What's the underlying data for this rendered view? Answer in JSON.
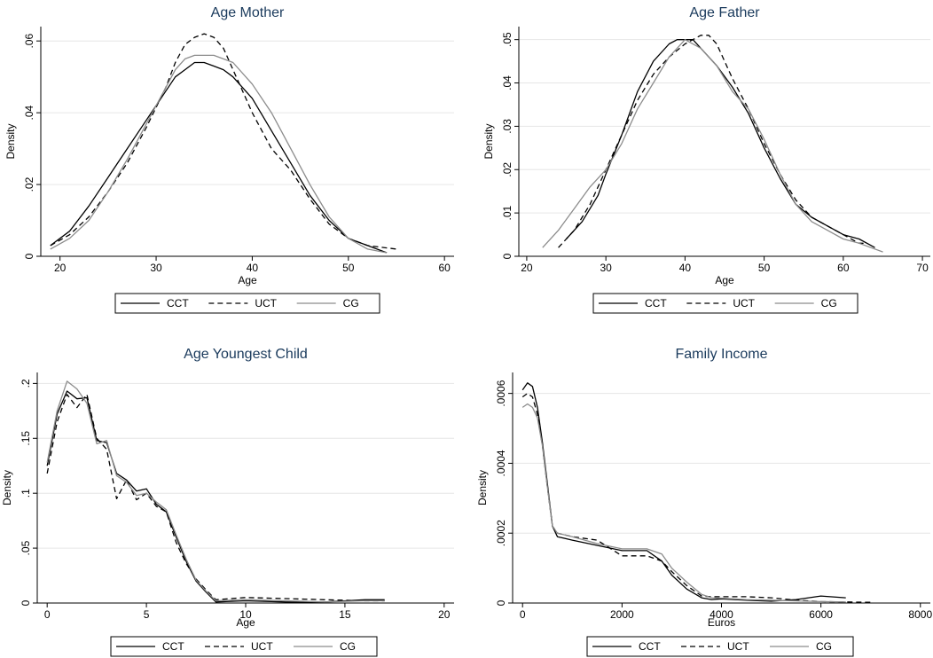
{
  "chart_data": [
    {
      "type": "line",
      "title": "Age Mother",
      "xlabel": "Age",
      "ylabel": "Density",
      "xlim": [
        18,
        61
      ],
      "ylim": [
        0,
        0.064
      ],
      "xticks": [
        20,
        30,
        40,
        50,
        60
      ],
      "yticks": [
        0,
        0.02,
        0.04,
        0.06
      ],
      "xtick_labels": [
        "20",
        "30",
        "40",
        "50",
        "60"
      ],
      "ytick_labels": [
        "0",
        ".02",
        ".04",
        ".06"
      ],
      "grid": true,
      "legend_position": "bottom",
      "series": [
        {
          "name": "CCT",
          "style": "solid",
          "color": "#000000",
          "x": [
            19,
            21,
            23,
            25,
            27,
            29,
            31,
            32,
            33,
            34,
            35,
            36,
            37,
            38,
            40,
            42,
            44,
            46,
            48,
            50,
            52,
            54
          ],
          "y": [
            0.003,
            0.007,
            0.014,
            0.022,
            0.03,
            0.038,
            0.046,
            0.05,
            0.052,
            0.054,
            0.054,
            0.053,
            0.052,
            0.05,
            0.044,
            0.035,
            0.026,
            0.017,
            0.01,
            0.005,
            0.003,
            0.001
          ]
        },
        {
          "name": "UCT",
          "style": "dashed",
          "color": "#000000",
          "x": [
            19,
            21,
            23,
            25,
            27,
            29,
            31,
            32,
            33,
            34,
            35,
            36,
            37,
            38,
            39,
            40,
            42,
            44,
            46,
            48,
            50,
            52,
            55
          ],
          "y": [
            0.003,
            0.006,
            0.011,
            0.018,
            0.026,
            0.036,
            0.047,
            0.054,
            0.059,
            0.061,
            0.062,
            0.061,
            0.058,
            0.052,
            0.046,
            0.04,
            0.03,
            0.024,
            0.016,
            0.009,
            0.005,
            0.003,
            0.002
          ]
        },
        {
          "name": "CG",
          "style": "solid",
          "color": "#8c8c8c",
          "x": [
            19,
            21,
            23,
            25,
            27,
            29,
            31,
            32,
            33,
            34,
            35,
            36,
            37,
            38,
            40,
            42,
            44,
            46,
            48,
            50,
            52,
            54
          ],
          "y": [
            0.002,
            0.005,
            0.01,
            0.018,
            0.027,
            0.037,
            0.047,
            0.052,
            0.055,
            0.056,
            0.056,
            0.056,
            0.055,
            0.054,
            0.048,
            0.04,
            0.03,
            0.02,
            0.011,
            0.005,
            0.002,
            0.001
          ]
        }
      ]
    },
    {
      "type": "line",
      "title": "Age Father",
      "xlabel": "Age",
      "ylabel": "Density",
      "xlim": [
        19,
        71
      ],
      "ylim": [
        0,
        0.053
      ],
      "xticks": [
        20,
        30,
        40,
        50,
        60,
        70
      ],
      "yticks": [
        0,
        0.01,
        0.02,
        0.03,
        0.04,
        0.05
      ],
      "xtick_labels": [
        "20",
        "30",
        "40",
        "50",
        "60",
        "70"
      ],
      "ytick_labels": [
        "0",
        ".01",
        ".02",
        ".03",
        ".04",
        ".05"
      ],
      "grid": true,
      "legend_position": "bottom",
      "series": [
        {
          "name": "CCT",
          "style": "solid",
          "color": "#000000",
          "x": [
            25,
            27,
            29,
            30,
            32,
            34,
            36,
            38,
            39,
            40,
            41,
            42,
            44,
            46,
            48,
            50,
            52,
            54,
            56,
            58,
            60,
            62,
            64
          ],
          "y": [
            0.004,
            0.008,
            0.014,
            0.019,
            0.028,
            0.038,
            0.045,
            0.049,
            0.05,
            0.05,
            0.05,
            0.048,
            0.044,
            0.039,
            0.033,
            0.025,
            0.018,
            0.012,
            0.009,
            0.007,
            0.005,
            0.004,
            0.002
          ]
        },
        {
          "name": "UCT",
          "style": "dashed",
          "color": "#000000",
          "x": [
            24,
            26,
            28,
            30,
            32,
            34,
            36,
            38,
            40,
            41,
            42,
            43,
            44,
            46,
            48,
            50,
            52,
            54,
            56,
            58,
            60,
            62,
            63
          ],
          "y": [
            0.002,
            0.006,
            0.012,
            0.02,
            0.028,
            0.036,
            0.042,
            0.046,
            0.049,
            0.05,
            0.051,
            0.051,
            0.049,
            0.041,
            0.034,
            0.026,
            0.019,
            0.013,
            0.009,
            0.007,
            0.005,
            0.003,
            0.003
          ]
        },
        {
          "name": "CG",
          "style": "solid",
          "color": "#8c8c8c",
          "x": [
            22,
            24,
            26,
            28,
            30,
            32,
            34,
            36,
            38,
            40,
            42,
            44,
            46,
            48,
            50,
            52,
            54,
            56,
            58,
            60,
            62,
            65
          ],
          "y": [
            0.002,
            0.006,
            0.011,
            0.016,
            0.02,
            0.026,
            0.034,
            0.04,
            0.046,
            0.05,
            0.048,
            0.044,
            0.038,
            0.034,
            0.027,
            0.019,
            0.012,
            0.008,
            0.006,
            0.004,
            0.003,
            0.001
          ]
        }
      ]
    },
    {
      "type": "line",
      "title": "Age Youngest Child",
      "xlabel": "Age",
      "ylabel": "Density",
      "xlim": [
        -0.5,
        20.5
      ],
      "ylim": [
        0,
        0.21
      ],
      "xticks": [
        0,
        5,
        10,
        15,
        20
      ],
      "yticks": [
        0,
        0.05,
        0.1,
        0.15,
        0.2
      ],
      "xtick_labels": [
        "0",
        "5",
        "10",
        "15",
        "20"
      ],
      "ytick_labels": [
        "0",
        ".05",
        ".1",
        ".15",
        ".2"
      ],
      "grid": true,
      "legend_position": "bottom",
      "series": [
        {
          "name": "CCT",
          "style": "solid",
          "color": "#000000",
          "x": [
            0,
            0.5,
            1.0,
            1.5,
            2.0,
            2.5,
            3.0,
            3.5,
            4.0,
            4.5,
            5.0,
            5.5,
            6.0,
            6.5,
            7.0,
            7.5,
            8.0,
            8.5,
            10,
            12,
            14,
            16,
            17
          ],
          "y": [
            0.125,
            0.172,
            0.193,
            0.186,
            0.187,
            0.148,
            0.146,
            0.118,
            0.112,
            0.102,
            0.104,
            0.09,
            0.083,
            0.06,
            0.038,
            0.02,
            0.01,
            0.001,
            0.002,
            0.001,
            0.001,
            0.003,
            0.003
          ]
        },
        {
          "name": "UCT",
          "style": "dashed",
          "color": "#000000",
          "x": [
            0,
            0.5,
            1.0,
            1.5,
            2.0,
            2.5,
            3.0,
            3.5,
            4.0,
            4.5,
            5.0,
            5.5,
            6.0,
            6.5,
            7.0,
            7.5,
            8.0,
            8.5,
            10,
            12,
            14,
            16,
            17
          ],
          "y": [
            0.118,
            0.165,
            0.19,
            0.178,
            0.19,
            0.15,
            0.14,
            0.095,
            0.112,
            0.094,
            0.1,
            0.088,
            0.083,
            0.055,
            0.036,
            0.022,
            0.012,
            0.003,
            0.005,
            0.004,
            0.003,
            0.002,
            0.002
          ]
        },
        {
          "name": "CG",
          "style": "solid",
          "color": "#8c8c8c",
          "x": [
            0,
            0.5,
            1.0,
            1.5,
            2.0,
            2.5,
            3.0,
            3.5,
            4.0,
            4.5,
            5.0,
            5.5,
            6.0,
            6.5,
            7.0,
            7.5,
            8.0,
            8.5,
            10,
            12,
            14,
            16,
            17
          ],
          "y": [
            0.128,
            0.175,
            0.202,
            0.195,
            0.182,
            0.145,
            0.148,
            0.116,
            0.11,
            0.098,
            0.1,
            0.092,
            0.085,
            0.062,
            0.04,
            0.021,
            0.011,
            0.002,
            0.003,
            0.002,
            0.001,
            0.002,
            0.002
          ]
        }
      ]
    },
    {
      "type": "line",
      "title": "Family Income",
      "xlabel": "Euros",
      "ylabel": "Density",
      "xlim": [
        -200,
        8200
      ],
      "ylim": [
        0,
        0.00066
      ],
      "xticks": [
        0,
        2000,
        4000,
        6000,
        8000
      ],
      "yticks": [
        0,
        0.0002,
        0.0004,
        0.0006
      ],
      "xtick_labels": [
        "0",
        "2000",
        "4000",
        "6000",
        "8000"
      ],
      "ytick_labels": [
        "0",
        ".0002",
        ".0004",
        ".0006"
      ],
      "grid": true,
      "legend_position": "bottom",
      "series": [
        {
          "name": "CCT",
          "style": "solid",
          "color": "#000000",
          "x": [
            0,
            100,
            200,
            300,
            400,
            500,
            600,
            700,
            1000,
            1500,
            2000,
            2500,
            2800,
            3000,
            3300,
            3600,
            3800,
            4000,
            4500,
            5000,
            5500,
            6000,
            6500
          ],
          "y": [
            0.00061,
            0.00063,
            0.00062,
            0.00056,
            0.00046,
            0.00034,
            0.00022,
            0.00019,
            0.00018,
            0.000165,
            0.00015,
            0.00015,
            0.00012,
            8e-05,
            4e-05,
            1.5e-05,
            1e-05,
            1.2e-05,
            8e-06,
            5e-06,
            1e-05,
            2e-05,
            1.5e-05
          ]
        },
        {
          "name": "UCT",
          "style": "dashed",
          "color": "#000000",
          "x": [
            0,
            100,
            200,
            300,
            400,
            500,
            600,
            700,
            1000,
            1500,
            2000,
            2500,
            2800,
            3000,
            3300,
            3600,
            3800,
            4000,
            4500,
            5000,
            5500,
            6000,
            7000
          ],
          "y": [
            0.00059,
            0.0006,
            0.00059,
            0.00054,
            0.00045,
            0.00033,
            0.00022,
            0.0002,
            0.00019,
            0.00018,
            0.000135,
            0.000135,
            0.00012,
            9e-05,
            5e-05,
            2e-05,
            1.8e-05,
            1.8e-05,
            1.8e-05,
            1.5e-05,
            8e-06,
            4e-06,
            2e-06
          ]
        },
        {
          "name": "CG",
          "style": "solid",
          "color": "#8c8c8c",
          "x": [
            0,
            100,
            200,
            300,
            400,
            500,
            600,
            700,
            1000,
            1500,
            2000,
            2500,
            2800,
            3000,
            3300,
            3600,
            3800,
            4000,
            4500,
            5000,
            5500,
            6000,
            6500
          ],
          "y": [
            0.00056,
            0.00057,
            0.00056,
            0.00053,
            0.00045,
            0.00033,
            0.00022,
            0.0002,
            0.00019,
            0.00017,
            0.000155,
            0.000155,
            0.00014,
            0.0001,
            6e-05,
            2.5e-05,
            1.5e-05,
            1.4e-05,
            1e-05,
            8e-06,
            6e-06,
            4e-06,
            3e-06
          ]
        }
      ]
    }
  ]
}
